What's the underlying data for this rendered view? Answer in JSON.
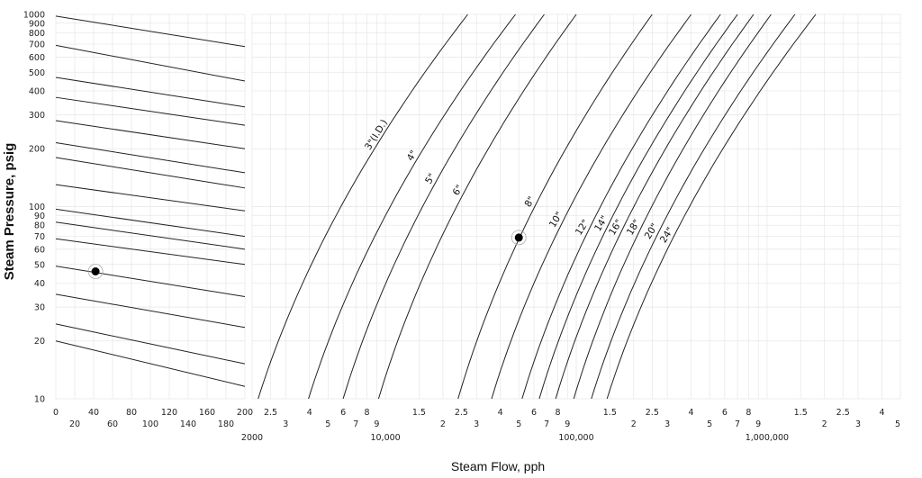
{
  "chart_data": {
    "type": "line",
    "ylabel": "Steam Pressure, psig",
    "xlabel": "Steam Flow, pph",
    "y_scale": "log",
    "ylim": [
      10,
      1000
    ],
    "y_ticks": [
      {
        "v": 10,
        "t": "10"
      },
      {
        "v": 20,
        "t": "20"
      },
      {
        "v": 30,
        "t": "30"
      },
      {
        "v": 40,
        "t": "40"
      },
      {
        "v": 50,
        "t": "50"
      },
      {
        "v": 60,
        "t": "60"
      },
      {
        "v": 70,
        "t": "70"
      },
      {
        "v": 80,
        "t": "80"
      },
      {
        "v": 90,
        "t": "90"
      },
      {
        "v": 100,
        "t": "100"
      },
      {
        "v": 200,
        "t": "200"
      },
      {
        "v": 300,
        "t": "300"
      },
      {
        "v": 400,
        "t": "400"
      },
      {
        "v": 500,
        "t": "500"
      },
      {
        "v": 600,
        "t": "600"
      },
      {
        "v": 700,
        "t": "700"
      },
      {
        "v": 800,
        "t": "800"
      },
      {
        "v": 900,
        "t": "900"
      },
      {
        "v": 1000,
        "t": "1000"
      }
    ],
    "left_panel": {
      "x_range": [
        0,
        200
      ],
      "x_ticks_top": [
        "0",
        "40",
        "80",
        "120",
        "160",
        "200"
      ],
      "x_ticks_bottom": [
        "20",
        "60",
        "100",
        "140",
        "180"
      ],
      "lines": [
        {
          "y0": 980,
          "y1": 680
        },
        {
          "y0": 690,
          "y1": 450
        },
        {
          "y0": 470,
          "y1": 330
        },
        {
          "y0": 370,
          "y1": 265
        },
        {
          "y0": 280,
          "y1": 200
        },
        {
          "y0": 215,
          "y1": 150
        },
        {
          "y0": 180,
          "y1": 125
        },
        {
          "y0": 130,
          "y1": 95
        },
        {
          "y0": 97,
          "y1": 70
        },
        {
          "y0": 83,
          "y1": 60
        },
        {
          "y0": 68,
          "y1": 50
        },
        {
          "y0": 49,
          "y1": 34
        },
        {
          "y0": 35,
          "y1": 23.5
        },
        {
          "y0": 24.5,
          "y1": 15.2
        },
        {
          "y0": 20,
          "y1": 11.6
        }
      ],
      "marked_point": {
        "x": 42,
        "y": 46
      }
    },
    "right_panel": {
      "x_scale": "log",
      "x_range": [
        2000,
        5000000
      ],
      "x_ticks_minor": [
        "2.5",
        "3",
        "4",
        "5",
        "6",
        "7",
        "8",
        "9",
        "1.5",
        "2",
        "2.5",
        "3",
        "4",
        "5",
        "6",
        "7",
        "8",
        "9",
        "1.5",
        "2",
        "2.5",
        "3",
        "4",
        "5",
        "6",
        "7",
        "8",
        "9",
        "1.5",
        "2",
        "2.5",
        "3",
        "4",
        "5"
      ],
      "x_ticks_major": [
        "2000",
        "10,000",
        "100,000",
        "1,000,000"
      ],
      "series": [
        {
          "name": "3\"(I.D.)",
          "x_at_10": 2150,
          "x_at_1000": 27000
        },
        {
          "name": "4\"",
          "x_at_10": 3950,
          "x_at_1000": 48000
        },
        {
          "name": "5\"",
          "x_at_10": 6000,
          "x_at_1000": 68000
        },
        {
          "name": "6\"",
          "x_at_10": 9200,
          "x_at_1000": 100000
        },
        {
          "name": "8\"",
          "x_at_10": 24000,
          "x_at_1000": 250000
        },
        {
          "name": "10\"",
          "x_at_10": 36000,
          "x_at_1000": 400000
        },
        {
          "name": "12\"",
          "x_at_10": 52000,
          "x_at_1000": 570000
        },
        {
          "name": "14\"",
          "x_at_10": 64000,
          "x_at_1000": 700000
        },
        {
          "name": "16\"",
          "x_at_10": 78000,
          "x_at_1000": 850000
        },
        {
          "name": "18\"",
          "x_at_10": 97000,
          "x_at_1000": 1050000
        },
        {
          "name": "20\"",
          "x_at_10": 120000,
          "x_at_1000": 1400000
        },
        {
          "name": "24\"",
          "x_at_10": 145000,
          "x_at_1000": 1800000
        }
      ],
      "marked_point": {
        "x": 50000,
        "y": 69
      }
    }
  }
}
